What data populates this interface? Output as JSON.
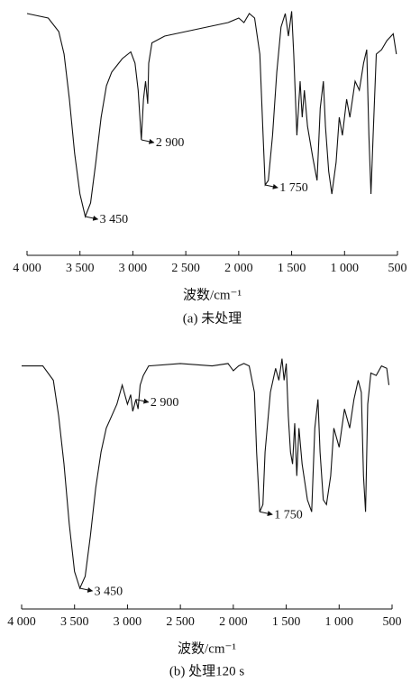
{
  "chart_data": [
    {
      "type": "line",
      "x_label": "波数/cm⁻¹",
      "caption": "(a) 未处理",
      "xlim": [
        4000,
        500
      ],
      "ylim": [
        0,
        100
      ],
      "xticks": [
        {
          "value": 4000,
          "label": "4 000"
        },
        {
          "value": 3500,
          "label": "3 500"
        },
        {
          "value": 3000,
          "label": "3 000"
        },
        {
          "value": 2500,
          "label": "2 500"
        },
        {
          "value": 2000,
          "label": "2 000"
        },
        {
          "value": 1500,
          "label": "1 500"
        },
        {
          "value": 1000,
          "label": "1 000"
        },
        500
      ],
      "x": [
        4000,
        3800,
        3700,
        3650,
        3600,
        3550,
        3500,
        3450,
        3400,
        3350,
        3300,
        3250,
        3200,
        3100,
        3020,
        2980,
        2950,
        2920,
        2900,
        2880,
        2860,
        2850,
        2820,
        2700,
        2500,
        2300,
        2100,
        2000,
        1950,
        1900,
        1850,
        1800,
        1770,
        1750,
        1720,
        1680,
        1640,
        1600,
        1560,
        1530,
        1500,
        1480,
        1450,
        1420,
        1400,
        1380,
        1350,
        1300,
        1260,
        1230,
        1200,
        1180,
        1150,
        1120,
        1080,
        1050,
        1020,
        980,
        950,
        900,
        860,
        820,
        790,
        770,
        750,
        730,
        700,
        650,
        600,
        540,
        510
      ],
      "series": [
        {
          "color": "#111111",
          "values": [
            98,
            96,
            90,
            80,
            60,
            36,
            18,
            8,
            14,
            32,
            52,
            66,
            72,
            78,
            81,
            76,
            64,
            42,
            60,
            68,
            58,
            76,
            85,
            88,
            90,
            92,
            94,
            96,
            94,
            98,
            96,
            80,
            44,
            22,
            24,
            44,
            72,
            92,
            98,
            88,
            99,
            80,
            44,
            68,
            52,
            64,
            48,
            34,
            24,
            56,
            68,
            48,
            28,
            18,
            32,
            52,
            44,
            60,
            52,
            68,
            64,
            76,
            82,
            44,
            18,
            44,
            80,
            82,
            86,
            89,
            80
          ]
        }
      ],
      "annotations": [
        {
          "x": 3450,
          "label": "3 450"
        },
        {
          "x": 2920,
          "label": "2 900"
        },
        {
          "x": 1750,
          "label": "1 750"
        }
      ]
    },
    {
      "type": "line",
      "x_label": "波数/cm⁻¹",
      "caption": "(b) 处理120 s",
      "xlim": [
        4000,
        500
      ],
      "ylim": [
        0,
        100
      ],
      "xticks": [
        {
          "value": 4000,
          "label": "4 000"
        },
        {
          "value": 3500,
          "label": "3 500"
        },
        {
          "value": 3000,
          "label": "3 000"
        },
        {
          "value": 2500,
          "label": "2 500"
        },
        {
          "value": 2000,
          "label": "2 000"
        },
        {
          "value": 1500,
          "label": "1 500"
        },
        {
          "value": 1000,
          "label": "1 000"
        },
        500
      ],
      "x": [
        4000,
        3800,
        3700,
        3650,
        3600,
        3550,
        3500,
        3450,
        3400,
        3350,
        3300,
        3250,
        3200,
        3100,
        3050,
        3000,
        2970,
        2950,
        2920,
        2900,
        2880,
        2850,
        2800,
        2500,
        2200,
        2050,
        2000,
        1950,
        1900,
        1850,
        1800,
        1780,
        1750,
        1720,
        1700,
        1650,
        1600,
        1570,
        1540,
        1520,
        1500,
        1480,
        1460,
        1440,
        1420,
        1400,
        1380,
        1350,
        1300,
        1260,
        1230,
        1200,
        1180,
        1150,
        1120,
        1080,
        1050,
        1000,
        950,
        900,
        860,
        820,
        790,
        770,
        750,
        730,
        700,
        650,
        600,
        550,
        530
      ],
      "series": [
        {
          "color": "#111111",
          "values": [
            96,
            96,
            90,
            75,
            55,
            30,
            10,
            3,
            8,
            25,
            45,
            60,
            70,
            80,
            88,
            80,
            84,
            77,
            82,
            78,
            88,
            92,
            96,
            97,
            96,
            97,
            94,
            96,
            97,
            96,
            85,
            60,
            35,
            38,
            60,
            85,
            95,
            90,
            99,
            90,
            97,
            75,
            60,
            55,
            72,
            50,
            70,
            55,
            40,
            35,
            70,
            82,
            60,
            40,
            38,
            50,
            70,
            62,
            78,
            70,
            82,
            90,
            85,
            50,
            35,
            80,
            93,
            92,
            96,
            95,
            88
          ]
        }
      ],
      "annotations": [
        {
          "x": 3450,
          "label": "3 450"
        },
        {
          "x": 2920,
          "label": "2 900"
        },
        {
          "x": 1750,
          "label": "1 750"
        }
      ]
    }
  ]
}
